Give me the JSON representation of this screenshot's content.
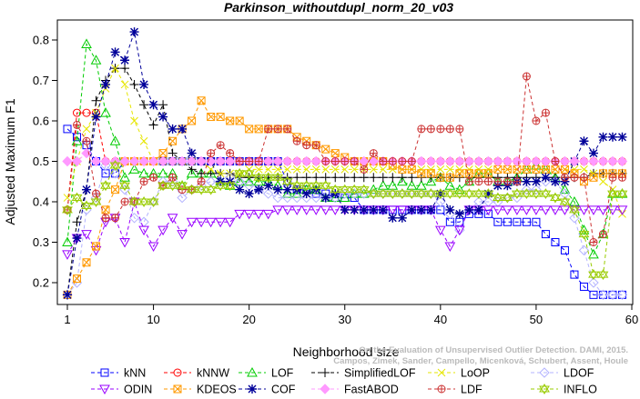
{
  "chart_data": {
    "type": "line",
    "title": "Parkinson_withoutdupl_norm_20_v03",
    "xlabel": "Neighborhood size",
    "ylabel": "Adjusted Maximum F1",
    "xlim": [
      1,
      60
    ],
    "ylim": [
      0.15,
      0.85
    ],
    "x_ticks": [
      1,
      10,
      20,
      30,
      40,
      50,
      60
    ],
    "y_ticks": [
      0.2,
      0.3,
      0.4,
      0.5,
      0.6,
      0.7,
      0.8
    ],
    "grid": false,
    "legend_position": "bottom",
    "watermark": "Campos, Zimek, Sander, Campello, Micenková, Schubert, Assent, Houle",
    "watermark_line1": "On the Evaluation of Unsupervised Outlier Detection. DAMI, 2015.",
    "x": [
      1,
      2,
      3,
      4,
      5,
      6,
      7,
      8,
      9,
      10,
      11,
      12,
      13,
      14,
      15,
      16,
      17,
      18,
      19,
      20,
      21,
      22,
      23,
      24,
      25,
      26,
      27,
      28,
      29,
      30,
      31,
      32,
      33,
      34,
      35,
      36,
      37,
      38,
      39,
      40,
      41,
      42,
      43,
      44,
      45,
      46,
      47,
      48,
      49,
      50,
      51,
      52,
      53,
      54,
      55,
      56,
      57,
      58,
      59
    ],
    "series": [
      {
        "name": "kNN",
        "color": "#0000ff",
        "marker": "square",
        "values": [
          0.58,
          0.56,
          0.54,
          0.5,
          0.47,
          0.47,
          0.5,
          0.5,
          0.5,
          0.5,
          0.5,
          0.5,
          0.5,
          0.5,
          0.5,
          0.5,
          0.5,
          0.5,
          0.5,
          0.5,
          0.5,
          0.5,
          0.5,
          0.45,
          0.43,
          0.43,
          0.42,
          0.42,
          0.41,
          0.41,
          0.41,
          0.38,
          0.38,
          0.38,
          0.38,
          0.38,
          0.38,
          0.38,
          0.38,
          0.38,
          0.35,
          0.35,
          0.37,
          0.37,
          0.37,
          0.35,
          0.35,
          0.35,
          0.35,
          0.35,
          0.32,
          0.3,
          0.28,
          0.22,
          0.19,
          0.17,
          0.17,
          0.17,
          0.17
        ]
      },
      {
        "name": "kNNW",
        "color": "#ff0000",
        "marker": "circle",
        "values": [
          0.38,
          0.62,
          0.62,
          0.62,
          0.5,
          0.5,
          0.5,
          0.5,
          0.5,
          0.5,
          0.5,
          0.5,
          0.5,
          0.5,
          0.5,
          0.5,
          0.5,
          0.5,
          0.5,
          0.5,
          0.5,
          0.5,
          0.5,
          0.5,
          0.5,
          0.5,
          0.5,
          0.5,
          0.5,
          0.5,
          0.5,
          0.5,
          0.5,
          0.5,
          0.5,
          0.5,
          0.5,
          0.5,
          0.5,
          0.5,
          0.5,
          0.5,
          0.5,
          0.5,
          0.5,
          0.5,
          0.5,
          0.5,
          0.5,
          0.5,
          0.5,
          0.5,
          0.5,
          0.5,
          0.5,
          0.5,
          0.5,
          0.5,
          0.5
        ]
      },
      {
        "name": "LOF",
        "color": "#00cc00",
        "marker": "triangle-up",
        "values": [
          0.3,
          0.55,
          0.79,
          0.75,
          0.62,
          0.55,
          0.46,
          0.48,
          0.47,
          0.47,
          0.47,
          0.47,
          0.44,
          0.47,
          0.47,
          0.47,
          0.45,
          0.44,
          0.45,
          0.45,
          0.45,
          0.45,
          0.44,
          0.42,
          0.42,
          0.43,
          0.43,
          0.41,
          0.41,
          0.41,
          0.42,
          0.42,
          0.43,
          0.44,
          0.44,
          0.45,
          0.44,
          0.44,
          0.45,
          0.46,
          0.44,
          0.43,
          0.45,
          0.47,
          0.47,
          0.45,
          0.45,
          0.46,
          0.48,
          0.49,
          0.48,
          0.46,
          0.43,
          0.4,
          0.33,
          0.27,
          0.32,
          0.42,
          0.42
        ]
      },
      {
        "name": "SimplifiedLOF",
        "color": "#000000",
        "marker": "plus",
        "values": [
          0.17,
          0.35,
          0.43,
          0.65,
          0.7,
          0.73,
          0.73,
          0.69,
          0.64,
          0.59,
          0.64,
          0.52,
          0.5,
          0.48,
          0.47,
          0.47,
          0.47,
          0.47,
          0.46,
          0.46,
          0.46,
          0.46,
          0.46,
          0.46,
          0.46,
          0.46,
          0.46,
          0.46,
          0.46,
          0.46,
          0.46,
          0.46,
          0.46,
          0.46,
          0.46,
          0.46,
          0.46,
          0.46,
          0.46,
          0.46,
          0.46,
          0.46,
          0.46,
          0.46,
          0.46,
          0.46,
          0.46,
          0.46,
          0.46,
          0.46,
          0.46,
          0.46,
          0.46,
          0.46,
          0.46,
          0.47,
          0.47,
          0.47,
          0.47
        ]
      },
      {
        "name": "LoOP",
        "color": "#e6e600",
        "marker": "cross",
        "values": [
          0.41,
          0.5,
          0.58,
          0.62,
          0.68,
          0.73,
          0.69,
          0.6,
          0.55,
          0.5,
          0.5,
          0.5,
          0.5,
          0.5,
          0.5,
          0.48,
          0.47,
          0.47,
          0.47,
          0.48,
          0.48,
          0.48,
          0.48,
          0.48,
          0.48,
          0.48,
          0.48,
          0.48,
          0.48,
          0.48,
          0.48,
          0.48,
          0.48,
          0.48,
          0.48,
          0.48,
          0.48,
          0.48,
          0.48,
          0.48,
          0.48,
          0.48,
          0.48,
          0.48,
          0.48,
          0.48,
          0.48,
          0.48,
          0.48,
          0.48,
          0.48,
          0.48,
          0.48,
          0.48,
          0.48,
          0.47,
          0.45,
          0.43,
          0.37
        ]
      },
      {
        "name": "LDOF",
        "color": "#b3b3ff",
        "marker": "diamond",
        "values": [
          0.17,
          0.2,
          0.38,
          0.41,
          0.49,
          0.47,
          0.43,
          0.36,
          0.35,
          0.4,
          0.45,
          0.45,
          0.41,
          0.43,
          0.44,
          0.45,
          0.45,
          0.46,
          0.45,
          0.44,
          0.43,
          0.42,
          0.41,
          0.41,
          0.41,
          0.41,
          0.41,
          0.41,
          0.41,
          0.42,
          0.42,
          0.42,
          0.42,
          0.42,
          0.42,
          0.42,
          0.42,
          0.42,
          0.42,
          0.4,
          0.37,
          0.33,
          0.38,
          0.4,
          0.4,
          0.4,
          0.41,
          0.41,
          0.43,
          0.43,
          0.45,
          0.45,
          0.42,
          0.36,
          0.28,
          0.2,
          0.17,
          0.17,
          0.17
        ]
      },
      {
        "name": "ODIN",
        "color": "#9900ff",
        "marker": "triangle-down",
        "values": [
          0.27,
          0.31,
          0.32,
          0.28,
          0.35,
          0.36,
          0.3,
          0.4,
          0.33,
          0.29,
          0.33,
          0.36,
          0.32,
          0.35,
          0.35,
          0.35,
          0.35,
          0.35,
          0.37,
          0.37,
          0.37,
          0.37,
          0.38,
          0.38,
          0.38,
          0.38,
          0.38,
          0.38,
          0.38,
          0.38,
          0.38,
          0.38,
          0.38,
          0.38,
          0.38,
          0.38,
          0.38,
          0.38,
          0.38,
          0.33,
          0.29,
          0.33,
          0.38,
          0.38,
          0.38,
          0.38,
          0.38,
          0.38,
          0.38,
          0.38,
          0.38,
          0.38,
          0.38,
          0.38,
          0.38,
          0.38,
          0.38,
          0.38,
          0.38
        ]
      },
      {
        "name": "KDEOS",
        "color": "#ff9900",
        "marker": "square-x",
        "values": [
          0.17,
          0.21,
          0.25,
          0.29,
          0.38,
          0.43,
          0.5,
          0.5,
          0.5,
          0.5,
          0.52,
          0.55,
          0.58,
          0.6,
          0.65,
          0.61,
          0.61,
          0.6,
          0.6,
          0.58,
          0.58,
          0.58,
          0.58,
          0.58,
          0.56,
          0.55,
          0.54,
          0.53,
          0.52,
          0.51,
          0.5,
          0.5,
          0.5,
          0.5,
          0.49,
          0.48,
          0.48,
          0.47,
          0.47,
          0.46,
          0.46,
          0.47,
          0.47,
          0.47,
          0.47,
          0.48,
          0.48,
          0.48,
          0.48,
          0.48,
          0.48,
          0.48,
          0.48,
          0.47,
          0.45,
          0.46,
          0.47,
          0.47,
          0.47
        ]
      },
      {
        "name": "COF",
        "color": "#000099",
        "marker": "asterisk",
        "values": [
          0.17,
          0.31,
          0.43,
          0.61,
          0.69,
          0.77,
          0.75,
          0.82,
          0.69,
          0.64,
          0.61,
          0.58,
          0.58,
          0.52,
          0.5,
          0.5,
          0.45,
          0.45,
          0.43,
          0.42,
          0.43,
          0.44,
          0.43,
          0.43,
          0.43,
          0.42,
          0.43,
          0.41,
          0.42,
          0.38,
          0.38,
          0.38,
          0.38,
          0.38,
          0.36,
          0.36,
          0.38,
          0.38,
          0.38,
          0.42,
          0.38,
          0.37,
          0.38,
          0.38,
          0.42,
          0.44,
          0.44,
          0.45,
          0.45,
          0.45,
          0.46,
          0.45,
          0.45,
          0.5,
          0.55,
          0.52,
          0.56,
          0.56,
          0.56
        ]
      },
      {
        "name": "FastABOD",
        "color": "#ff99ff",
        "marker": "diamond-filled",
        "values": [
          0.5,
          0.5,
          0.52,
          0.5,
          0.5,
          0.5,
          0.5,
          0.5,
          0.5,
          0.5,
          0.5,
          0.5,
          0.5,
          0.5,
          0.5,
          0.5,
          0.5,
          0.5,
          0.5,
          0.5,
          0.5,
          0.5,
          0.5,
          0.5,
          0.5,
          0.5,
          0.5,
          0.5,
          0.5,
          0.5,
          0.5,
          0.5,
          0.5,
          0.5,
          0.5,
          0.5,
          0.5,
          0.5,
          0.5,
          0.5,
          0.5,
          0.5,
          0.5,
          0.5,
          0.5,
          0.5,
          0.5,
          0.5,
          0.5,
          0.5,
          0.5,
          0.5,
          0.5,
          0.5,
          0.5,
          0.5,
          0.5,
          0.5,
          0.5
        ]
      },
      {
        "name": "LDF",
        "color": "#cc3333",
        "marker": "circle-plus",
        "values": [
          0.38,
          0.59,
          0.55,
          0.42,
          0.36,
          0.36,
          0.4,
          0.4,
          0.45,
          0.46,
          0.44,
          0.46,
          0.43,
          0.43,
          0.45,
          0.52,
          0.54,
          0.52,
          0.5,
          0.5,
          0.5,
          0.58,
          0.58,
          0.58,
          0.55,
          0.54,
          0.54,
          0.5,
          0.5,
          0.5,
          0.5,
          0.48,
          0.52,
          0.5,
          0.5,
          0.5,
          0.5,
          0.58,
          0.58,
          0.58,
          0.58,
          0.58,
          0.45,
          0.45,
          0.45,
          0.45,
          0.45,
          0.45,
          0.71,
          0.6,
          0.62,
          0.5,
          0.46,
          0.46,
          0.46,
          0.3,
          0.32,
          0.46,
          0.46
        ]
      },
      {
        "name": "INFLO",
        "color": "#99cc00",
        "marker": "hexstar",
        "values": [
          0.38,
          0.41,
          0.39,
          0.4,
          0.44,
          0.49,
          0.44,
          0.4,
          0.4,
          0.4,
          0.44,
          0.44,
          0.44,
          0.43,
          0.43,
          0.43,
          0.44,
          0.44,
          0.47,
          0.47,
          0.46,
          0.46,
          0.46,
          0.45,
          0.44,
          0.44,
          0.44,
          0.44,
          0.43,
          0.43,
          0.43,
          0.43,
          0.42,
          0.42,
          0.42,
          0.42,
          0.42,
          0.42,
          0.42,
          0.42,
          0.42,
          0.42,
          0.42,
          0.42,
          0.42,
          0.41,
          0.41,
          0.42,
          0.42,
          0.42,
          0.42,
          0.41,
          0.4,
          0.38,
          0.32,
          0.22,
          0.22,
          0.42,
          0.42
        ]
      }
    ]
  }
}
